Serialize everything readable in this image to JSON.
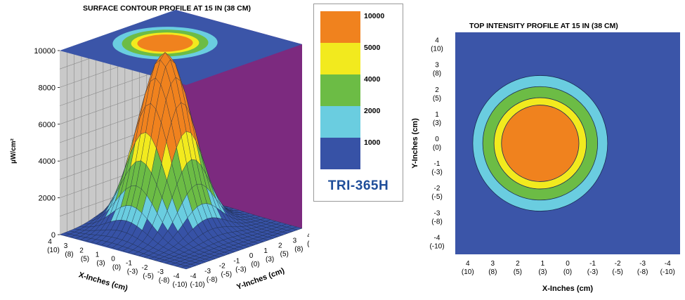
{
  "chart_data": [
    {
      "type": "surface",
      "title": "SURFACE CONTOUR PROFILE AT 15 IN (38 CM)",
      "zlabel": "µW/cm²",
      "xlabel": "X-Inches (cm)",
      "ylabel": "Y-Inches (cm)",
      "zlim": [
        0,
        10000
      ],
      "z_ticks": [
        "10000",
        "8000",
        "6000",
        "4000",
        "2000",
        "0"
      ],
      "x_ticks": [
        {
          "in": "4",
          "cm": "(10)"
        },
        {
          "in": "3",
          "cm": "(8)"
        },
        {
          "in": "2",
          "cm": "(5)"
        },
        {
          "in": "1",
          "cm": "(3)"
        },
        {
          "in": "0",
          "cm": "(0)"
        },
        {
          "in": "-1",
          "cm": "(-3)"
        },
        {
          "in": "-2",
          "cm": "(-5)"
        },
        {
          "in": "-3",
          "cm": "(-8)"
        },
        {
          "in": "-4",
          "cm": "(-10)"
        }
      ],
      "y_ticks": [
        {
          "in": "-4",
          "cm": "(-10)"
        },
        {
          "in": "-3",
          "cm": "(-8)"
        },
        {
          "in": "-2",
          "cm": "(-5)"
        },
        {
          "in": "-1",
          "cm": "(-3)"
        },
        {
          "in": "0",
          "cm": "(0)"
        },
        {
          "in": "1",
          "cm": "(3)"
        },
        {
          "in": "2",
          "cm": "(5)"
        },
        {
          "in": "3",
          "cm": "(8)"
        },
        {
          "in": "4",
          "cm": "(10)"
        }
      ],
      "peak": 9500,
      "peak_x_in": 1,
      "peak_y_in": 0,
      "grid": true
    },
    {
      "type": "heatmap",
      "title": "TOP INTENSITY PROFILE AT 15 IN (38 CM)",
      "xlabel": "X-Inches (cm)",
      "ylabel": "Y-Inches (cm)",
      "x_ticks": [
        {
          "in": "4",
          "cm": "(10)"
        },
        {
          "in": "3",
          "cm": "(8)"
        },
        {
          "in": "2",
          "cm": "(5)"
        },
        {
          "in": "1",
          "cm": "(3)"
        },
        {
          "in": "0",
          "cm": "(0)"
        },
        {
          "in": "-1",
          "cm": "(-3)"
        },
        {
          "in": "-2",
          "cm": "(-5)"
        },
        {
          "in": "-3",
          "cm": "(-8)"
        },
        {
          "in": "-4",
          "cm": "(-10)"
        }
      ],
      "y_ticks": [
        {
          "in": "4",
          "cm": "(10)"
        },
        {
          "in": "3",
          "cm": "(8)"
        },
        {
          "in": "2",
          "cm": "(5)"
        },
        {
          "in": "1",
          "cm": "(3)"
        },
        {
          "in": "0",
          "cm": "(0)"
        },
        {
          "in": "-1",
          "cm": "(-3)"
        },
        {
          "in": "-2",
          "cm": "(-5)"
        },
        {
          "in": "-3",
          "cm": "(-8)"
        },
        {
          "in": "-4",
          "cm": "(-10)"
        }
      ],
      "xlim": [
        4.5,
        -4.5
      ],
      "ylim": [
        -4.5,
        4.5
      ],
      "center_x_in": 1.1,
      "center_y_in": 0,
      "contours": [
        {
          "level": "1000",
          "rx_in": 2.7,
          "ry_in": 2.75
        },
        {
          "level": "2000",
          "rx_in": 2.3,
          "ry_in": 2.3
        },
        {
          "level": "4000",
          "rx_in": 1.85,
          "ry_in": 1.85
        },
        {
          "level": "5000",
          "rx_in": 1.55,
          "ry_in": 1.55
        }
      ]
    }
  ],
  "legend": {
    "levels": [
      "10000",
      "5000",
      "4000",
      "2000",
      "1000"
    ],
    "colors": [
      "#f0821e",
      "#f2ea1e",
      "#6cbc45",
      "#6acde0",
      "#3752a6"
    ],
    "model": "TRI-365H"
  },
  "colors": {
    "wall_left": "#c9c9c9",
    "wall_right": "#7c2a7f",
    "top_background": "#3b55a8"
  }
}
